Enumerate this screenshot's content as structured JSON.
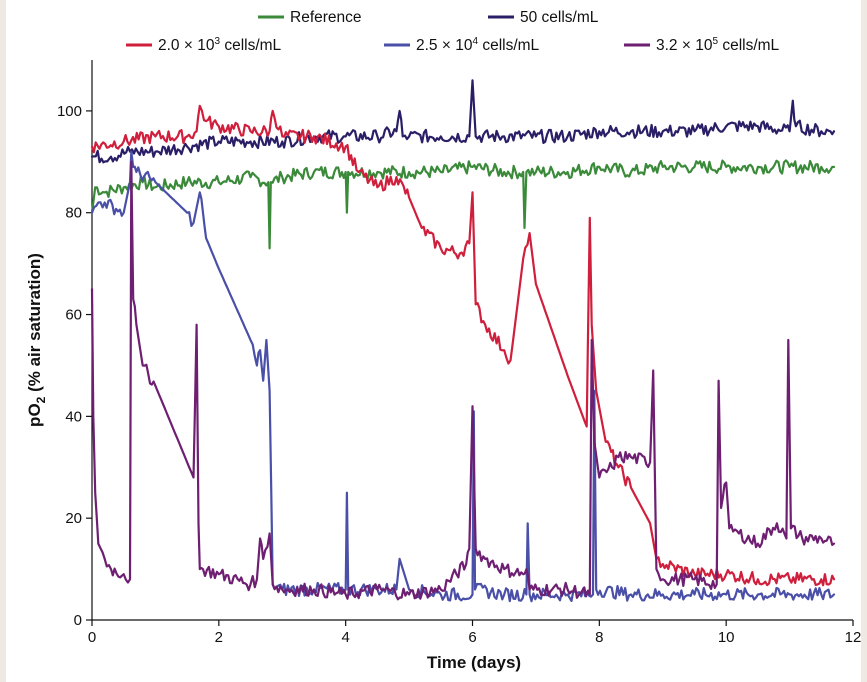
{
  "chart_data": {
    "type": "line",
    "xlabel": "Time (days)",
    "ylabel_main": "pO",
    "ylabel_sub": "2",
    "ylabel_rest": " (% air saturation)",
    "xlim": [
      0,
      12
    ],
    "ylim": [
      0,
      110
    ],
    "xticks": [
      0,
      2,
      4,
      6,
      8,
      10,
      12
    ],
    "yticks": [
      0,
      20,
      40,
      60,
      80,
      100
    ],
    "grid": false,
    "legend_position": "top",
    "legend": [
      {
        "base": "Reference",
        "exp": "",
        "unit": ""
      },
      {
        "base": "50 cells/mL",
        "exp": "",
        "unit": ""
      },
      {
        "base": "2.0 × 10",
        "exp": "3",
        "unit": " cells/mL"
      },
      {
        "base": "2.5 × 10",
        "exp": "4",
        "unit": " cells/mL"
      },
      {
        "base": "3.2 × 10",
        "exp": "5",
        "unit": " cells/mL"
      }
    ],
    "series": [
      {
        "color": "#3a8a3a",
        "x": [
          0,
          0.05,
          0.2,
          0.5,
          0.8,
          1.0,
          1.5,
          2.0,
          2.5,
          2.78,
          2.8,
          2.82,
          3.0,
          3.5,
          4.0,
          4.02,
          4.04,
          4.5,
          5.0,
          5.5,
          6.0,
          6.5,
          6.8,
          6.82,
          6.85,
          7.0,
          7.5,
          8.0,
          8.5,
          9.0,
          9.5,
          10.0,
          10.5,
          11.0,
          11.5,
          11.7
        ],
        "y": [
          80,
          85,
          84,
          85,
          86,
          85,
          86,
          86,
          87,
          86,
          73,
          86,
          87,
          88,
          88,
          80,
          88,
          88,
          88,
          88,
          89,
          88,
          88,
          77,
          88,
          88,
          88,
          89,
          88,
          89,
          89,
          89,
          89,
          89,
          89,
          89
        ]
      },
      {
        "color": "#2a1f66",
        "x": [
          0,
          0.3,
          0.6,
          1.0,
          1.5,
          2.0,
          2.5,
          3.0,
          3.5,
          4.0,
          4.5,
          4.8,
          4.85,
          4.9,
          5.0,
          5.5,
          5.95,
          6.0,
          6.05,
          6.5,
          7.0,
          7.5,
          8.0,
          8.5,
          9.0,
          9.5,
          10.0,
          10.5,
          11.0,
          11.05,
          11.1,
          11.5,
          11.7
        ],
        "y": [
          91,
          91,
          92,
          92,
          93,
          94,
          94,
          94,
          95,
          95,
          95,
          96,
          100,
          95,
          95,
          95,
          95,
          106,
          95,
          95,
          95,
          95,
          96,
          96,
          96,
          96,
          97,
          97,
          96,
          102,
          97,
          96,
          96
        ]
      },
      {
        "color": "#d01f3c",
        "x": [
          0,
          0.5,
          1.0,
          1.5,
          1.65,
          1.7,
          1.8,
          2.0,
          2.5,
          2.8,
          2.85,
          3.0,
          3.5,
          4.0,
          4.2,
          4.5,
          4.8,
          5.0,
          5.2,
          5.5,
          5.8,
          5.95,
          6.0,
          6.05,
          6.2,
          6.5,
          6.6,
          6.8,
          6.9,
          7.0,
          7.5,
          7.8,
          7.85,
          7.88,
          7.95,
          8.1,
          8.3,
          8.5,
          8.8,
          8.9,
          9.0,
          9.5,
          10.0,
          10.5,
          11.0,
          11.5,
          11.7
        ],
        "y": [
          93,
          94,
          95,
          95,
          96,
          101,
          98,
          97,
          96,
          96,
          100,
          95,
          95,
          93,
          88,
          85,
          87,
          83,
          77,
          73,
          72,
          74,
          84,
          62,
          58,
          53,
          51,
          71,
          76,
          66,
          48,
          38,
          79,
          58,
          45,
          35,
          30,
          26,
          19,
          12,
          11,
          9,
          9,
          8,
          8,
          8,
          8
        ]
      },
      {
        "color": "#4a4fa8",
        "x": [
          0,
          0.1,
          0.2,
          0.5,
          0.6,
          0.62,
          0.65,
          0.7,
          1.0,
          1.5,
          1.6,
          1.7,
          1.75,
          1.8,
          2.0,
          2.5,
          2.6,
          2.65,
          2.7,
          2.75,
          2.8,
          2.85,
          3.0,
          3.5,
          4.0,
          4.02,
          4.04,
          4.5,
          4.8,
          4.85,
          5.0,
          5.5,
          6.0,
          6.02,
          6.04,
          6.5,
          6.85,
          6.87,
          6.9,
          7.5,
          7.9,
          7.92,
          7.95,
          8.5,
          9.0,
          9.5,
          10.0,
          10.5,
          11.0,
          11.5,
          11.7
        ],
        "y": [
          80,
          82,
          82,
          80,
          86,
          92,
          89,
          88,
          86,
          80,
          78,
          84,
          80,
          75,
          69,
          55,
          50,
          53,
          47,
          55,
          45,
          7,
          6,
          6,
          6,
          25,
          6,
          6,
          6,
          12,
          6,
          5,
          5,
          41,
          6,
          5,
          5,
          19,
          5,
          5,
          5,
          45,
          6,
          5,
          5,
          5,
          5,
          5,
          5,
          5,
          5
        ]
      },
      {
        "color": "#6e1f72",
        "x": [
          0,
          0.02,
          0.05,
          0.1,
          0.2,
          0.3,
          0.5,
          0.6,
          0.62,
          0.65,
          0.7,
          0.8,
          1.0,
          1.2,
          1.4,
          1.6,
          1.65,
          1.68,
          1.7,
          1.75,
          2.0,
          2.5,
          2.6,
          2.65,
          2.7,
          2.8,
          2.85,
          3.0,
          3.5,
          4.0,
          4.5,
          5.0,
          5.5,
          5.9,
          5.95,
          6.0,
          6.05,
          6.2,
          6.5,
          6.8,
          6.85,
          6.9,
          7.5,
          7.85,
          7.88,
          7.92,
          8.0,
          8.2,
          8.3,
          8.5,
          8.8,
          8.85,
          8.9,
          9.0,
          9.5,
          9.85,
          9.88,
          9.92,
          10.0,
          10.05,
          10.2,
          10.5,
          10.8,
          10.95,
          10.98,
          11.02,
          11.2,
          11.5,
          11.7
        ],
        "y": [
          65,
          40,
          25,
          15,
          12,
          10,
          9,
          8,
          90,
          63,
          58,
          50,
          46,
          40,
          34,
          28,
          58,
          19,
          10,
          10,
          9,
          7,
          8,
          16,
          12,
          17,
          7,
          6,
          6,
          5,
          6,
          5,
          6,
          11,
          14,
          42,
          14,
          12,
          10,
          9,
          10,
          6,
          6,
          5,
          55,
          35,
          28,
          30,
          32,
          32,
          31,
          49,
          10,
          8,
          8,
          7,
          47,
          22,
          27,
          18,
          17,
          15,
          19,
          16,
          55,
          18,
          16,
          16,
          15
        ]
      }
    ]
  }
}
